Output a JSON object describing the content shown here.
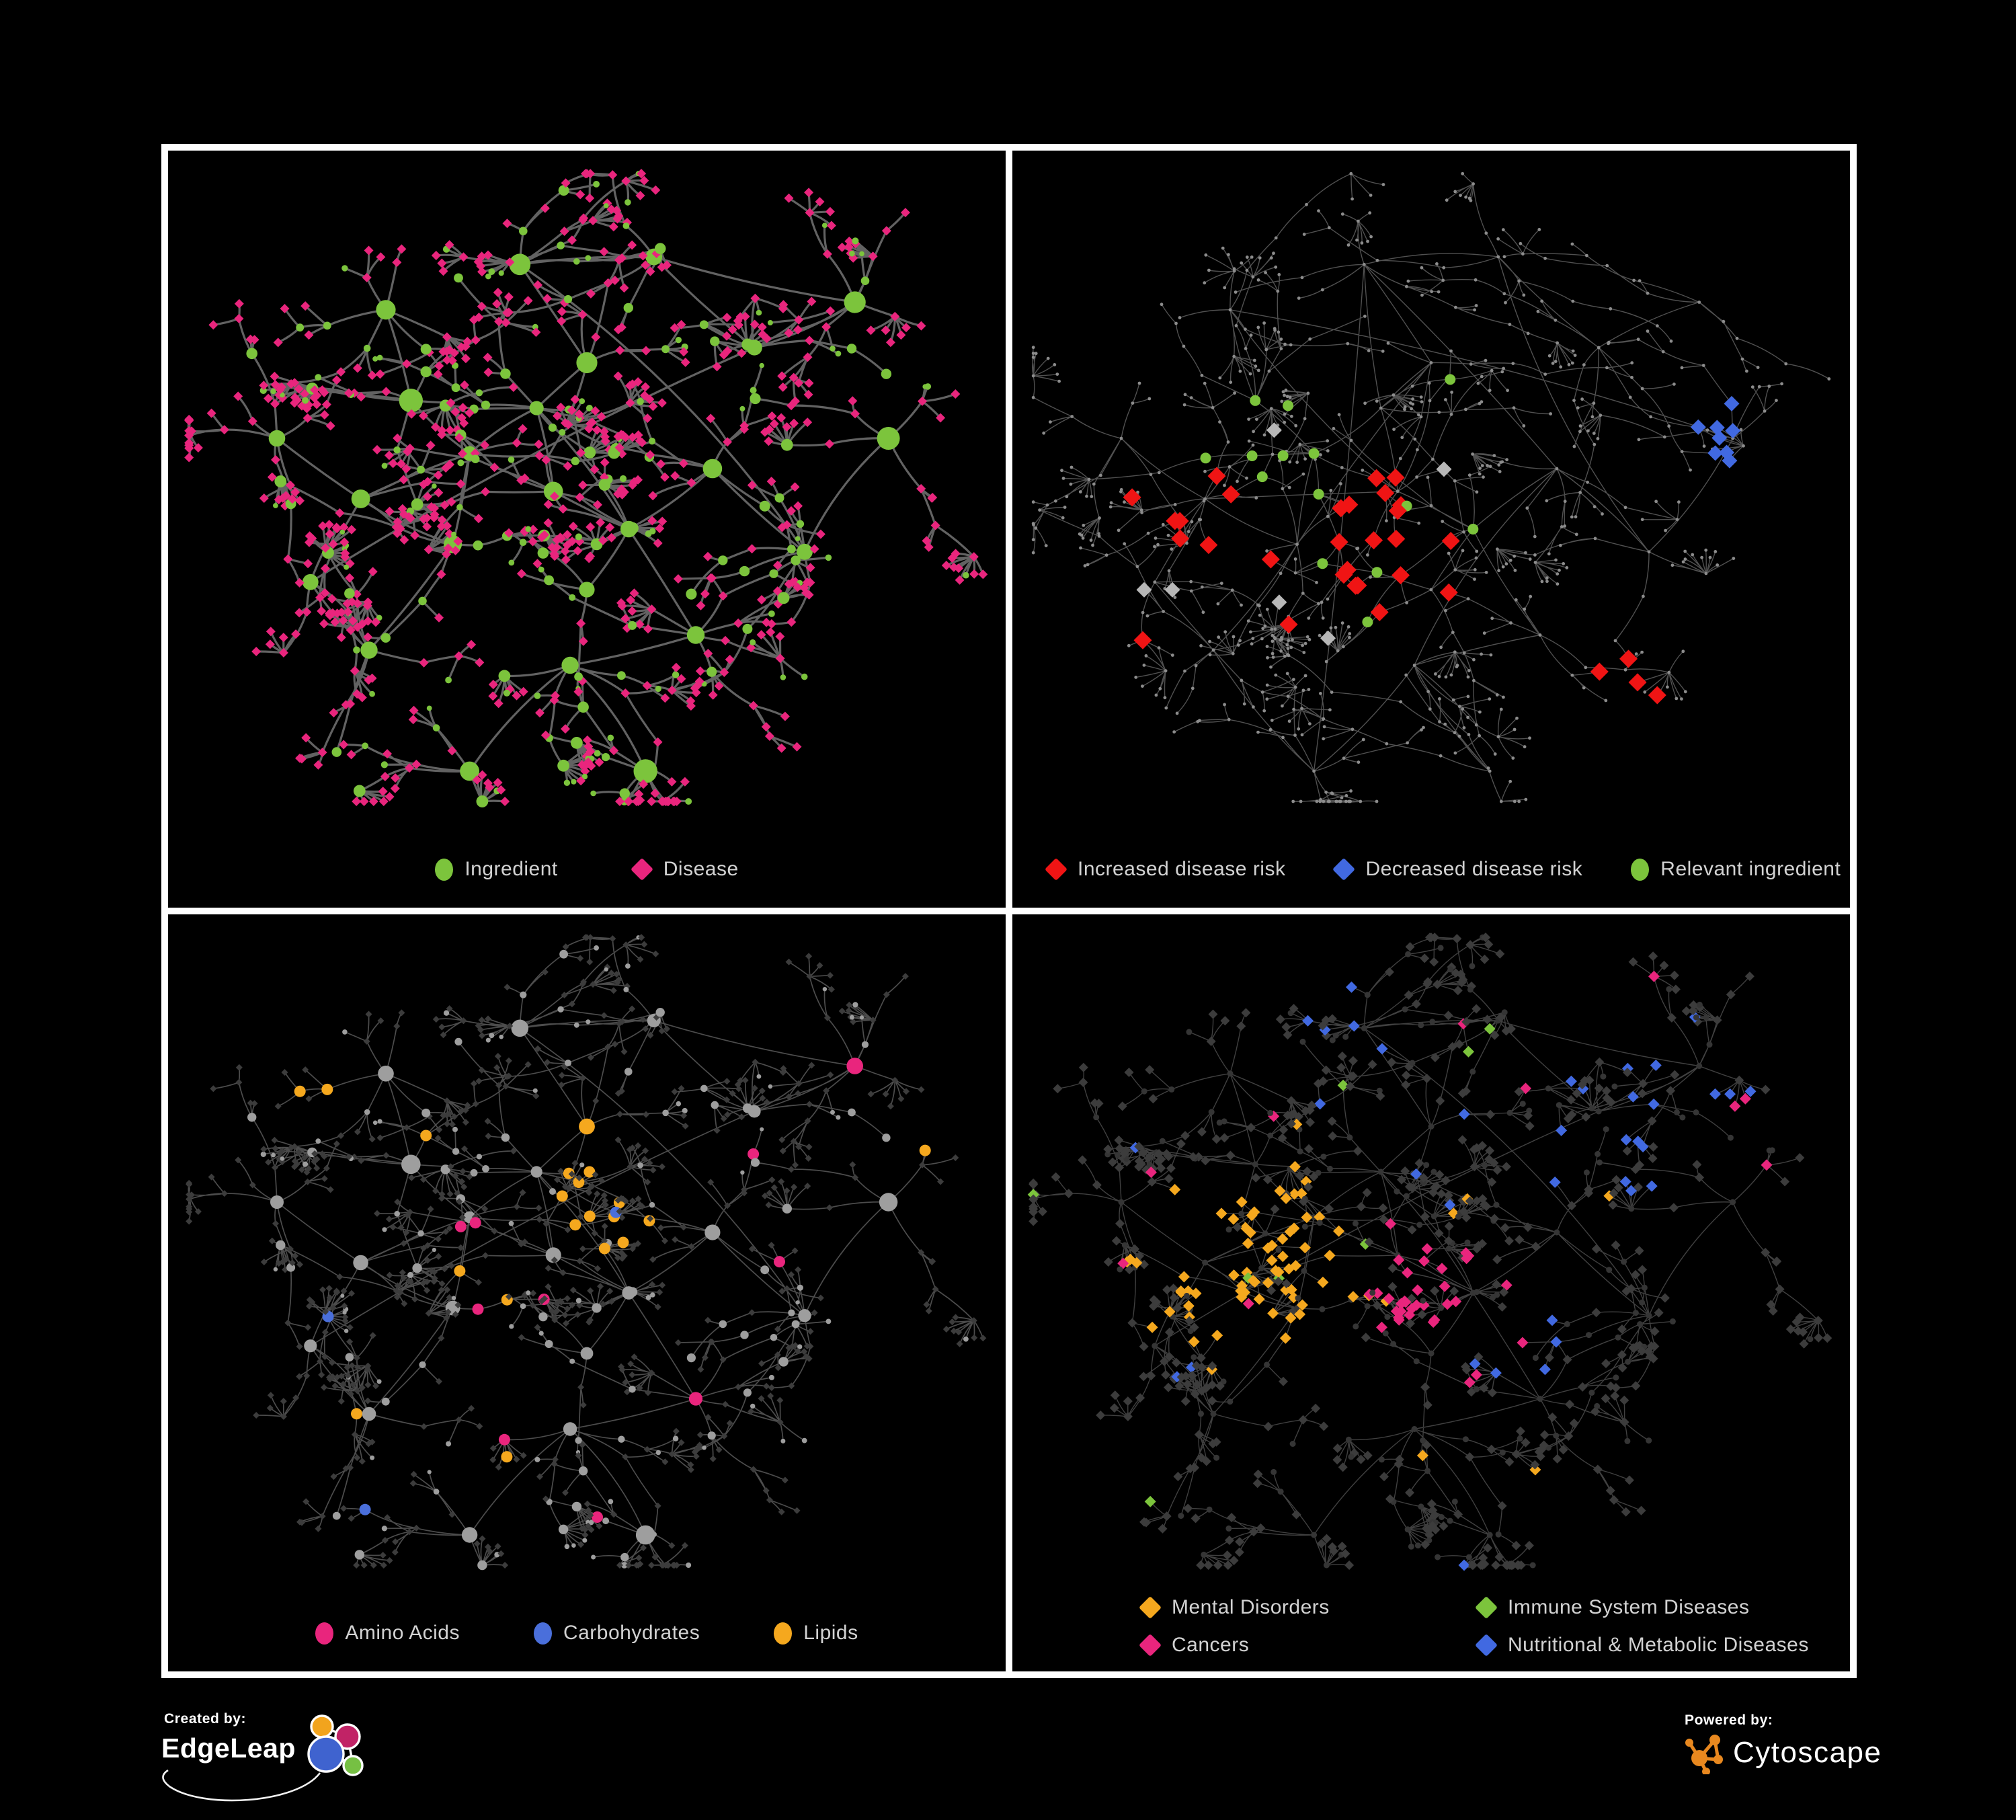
{
  "canvas": {
    "background": "#000000",
    "frame_color": "#ffffff"
  },
  "panels": [
    {
      "name": "ingredients-diseases",
      "legend": {
        "align": "center",
        "items": [
          {
            "label": "Ingredient",
            "shape": "circle",
            "color": "#7CC43C"
          },
          {
            "label": "Disease",
            "shape": "diamond",
            "color": "#E9257D"
          }
        ]
      }
    },
    {
      "name": "disease-risk",
      "legend": {
        "align": "left",
        "items": [
          {
            "label": "Increased disease risk",
            "shape": "diamond",
            "color": "#F01414"
          },
          {
            "label": "Decreased disease risk",
            "shape": "diamond",
            "color": "#4169E1"
          },
          {
            "label": "Relevant ingredient",
            "shape": "circle",
            "color": "#7CC43C"
          }
        ]
      }
    },
    {
      "name": "nutrient-classes",
      "legend": {
        "align": "center",
        "items": [
          {
            "label": "Amino Acids",
            "shape": "circle",
            "color": "#E9257D"
          },
          {
            "label": "Carbohydrates",
            "shape": "circle",
            "color": "#4A6FDB"
          },
          {
            "label": "Lipids",
            "shape": "circle",
            "color": "#F5A81E"
          }
        ]
      }
    },
    {
      "name": "disease-classes",
      "legend": {
        "align": "two-column",
        "items": [
          {
            "label": "Mental Disorders",
            "shape": "diamond",
            "color": "#F5A81E"
          },
          {
            "label": "Immune System Diseases",
            "shape": "diamond",
            "color": "#7CC43C"
          },
          {
            "label": "Cancers",
            "shape": "diamond",
            "color": "#E9257D"
          },
          {
            "label": "Nutritional & Metabolic Diseases",
            "shape": "diamond",
            "color": "#4169E1"
          }
        ]
      }
    }
  ],
  "network_styles": {
    "edges": {
      "p0": {
        "color": "#6D6D6D",
        "width": 3.2,
        "opacity": 0.9
      },
      "p1": {
        "color": "#5E5E5E",
        "width": 1.4,
        "opacity": 0.85
      },
      "p2": {
        "color": "#979797",
        "width": 1.7,
        "opacity": 0.5
      },
      "p3": {
        "color": "#8E8E8E",
        "width": 1.4,
        "opacity": 0.45
      }
    },
    "tiny_node": "#8C8C8C",
    "silver_diamond": "#B7B7B7",
    "gray_ingredient": "#9E9E9E",
    "dim_dark": "#3C3C3C",
    "dim_darker": "#353535"
  },
  "footer": {
    "created_by_label": "Created by:",
    "created_by_brand": "EdgeLeap",
    "powered_by_label": "Powered by:",
    "powered_by_brand": "Cytoscape",
    "edgeleap_colors": {
      "orange": "#F2A41E",
      "magenta": "#C12366",
      "blue": "#3F63CF",
      "green": "#76C043"
    },
    "cytoscape_orange": "#E8881F"
  }
}
